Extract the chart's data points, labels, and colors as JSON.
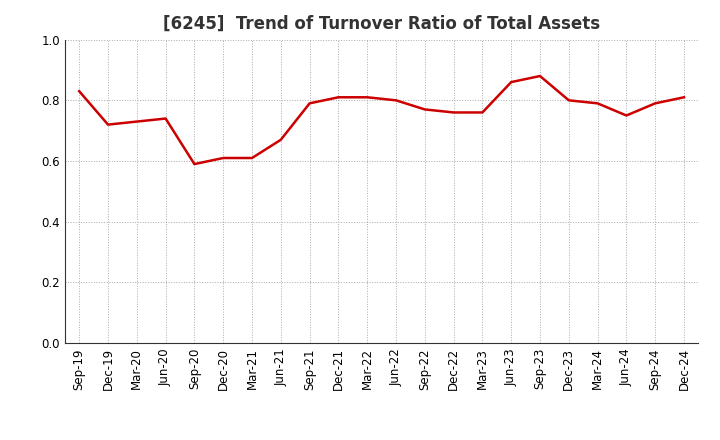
{
  "title": "[6245]  Trend of Turnover Ratio of Total Assets",
  "labels": [
    "Sep-19",
    "Dec-19",
    "Mar-20",
    "Jun-20",
    "Sep-20",
    "Dec-20",
    "Mar-21",
    "Jun-21",
    "Sep-21",
    "Dec-21",
    "Mar-22",
    "Jun-22",
    "Sep-22",
    "Dec-22",
    "Mar-23",
    "Jun-23",
    "Sep-23",
    "Dec-23",
    "Mar-24",
    "Jun-24",
    "Sep-24",
    "Dec-24"
  ],
  "values": [
    0.83,
    0.72,
    0.73,
    0.74,
    0.59,
    0.61,
    0.61,
    0.67,
    0.79,
    0.81,
    0.81,
    0.8,
    0.77,
    0.76,
    0.76,
    0.86,
    0.88,
    0.8,
    0.79,
    0.75,
    0.79,
    0.81
  ],
  "line_color": "#cc0000",
  "line_width": 1.8,
  "ylim": [
    0.0,
    1.0
  ],
  "yticks": [
    0.0,
    0.2,
    0.4,
    0.6,
    0.8,
    1.0
  ],
  "background_color": "#ffffff",
  "grid_color": "#aaaaaa",
  "title_fontsize": 12,
  "tick_fontsize": 8.5,
  "title_color": "#333333"
}
